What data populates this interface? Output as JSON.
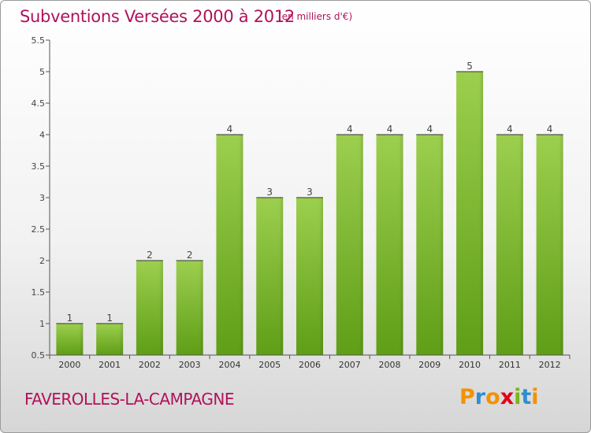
{
  "title": "Subventions Versées 2000 à 2012",
  "unit": "(en milliers d'€)",
  "commune": "FAVEROLLES-LA-CAMPAGNE",
  "logo": {
    "letters": [
      "P",
      "r",
      "o",
      "x",
      "i",
      "t",
      "i"
    ],
    "colors": [
      "#f39200",
      "#2f8ecf",
      "#f39200",
      "#e2001a",
      "#7ab51d",
      "#2f8ecf",
      "#f39200"
    ]
  },
  "colors": {
    "title": "#b0125b",
    "bar_light": "#9ccf4e",
    "bar_dark": "#5f9e17"
  },
  "chart_data": {
    "type": "bar",
    "categories": [
      "2000",
      "2001",
      "2002",
      "2003",
      "2004",
      "2005",
      "2006",
      "2007",
      "2008",
      "2009",
      "2010",
      "2011",
      "2012"
    ],
    "values": [
      1,
      1,
      2,
      2,
      4,
      3,
      3,
      4,
      4,
      4,
      5,
      4,
      4
    ],
    "data_labels": [
      "1",
      "1",
      "2",
      "2",
      "4",
      "3",
      "3",
      "4",
      "4",
      "4",
      "5",
      "4",
      "4"
    ],
    "title": "Subventions Versées 2000 à 2012",
    "xlabel": "",
    "ylabel": "",
    "ylim": [
      0.5,
      5.5
    ],
    "yticks": [
      0.5,
      1,
      1.5,
      2,
      2.5,
      3,
      3.5,
      4,
      4.5,
      5,
      5.5
    ],
    "ytick_labels": [
      "0.5",
      "1",
      "1.5",
      "2",
      "2.5",
      "3",
      "3.5",
      "4",
      "4.5",
      "5",
      "5.5"
    ],
    "grid": false,
    "legend": "none"
  }
}
